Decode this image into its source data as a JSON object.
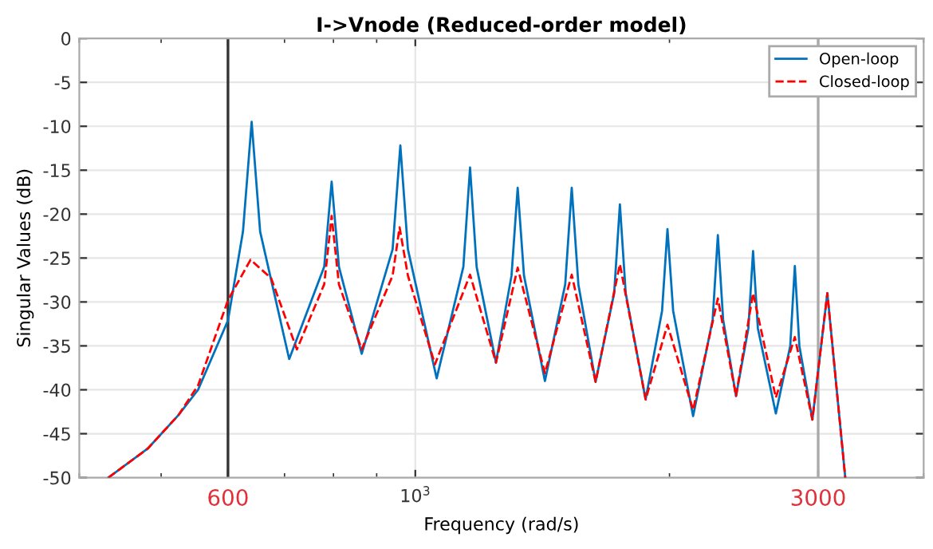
{
  "chart_data": {
    "type": "line",
    "title": "I->Vnode (Reduced-order model)",
    "xlabel": "Frequency (rad/s)",
    "ylabel": "Singular Values (dB)",
    "log": "x",
    "xlim": [
      400,
      4000
    ],
    "xticks": [
      600,
      {
        "value": 1000,
        "label": "10$^{3}$"
      },
      3000
    ],
    "ylim": [
      -50,
      0
    ],
    "yticks": [
      -50,
      -45,
      -40,
      -35,
      -30,
      -25,
      -20,
      -15,
      -10,
      -5,
      0
    ],
    "grid": true,
    "legend": "top right",
    "ref_lines": [
      {
        "axis": "x",
        "value": 600,
        "color": "#333333"
      },
      {
        "axis": "x",
        "value": 3000,
        "color": "#aaaaaa"
      }
    ],
    "series": [
      {
        "name": "Open-loop",
        "color": "#0072bd",
        "line_style": "solid",
        "x": [
          433,
          482,
          524,
          553,
          600,
          625,
          640,
          655,
          709,
          780,
          796,
          812,
          864,
          940,
          960,
          980,
          1060,
          1140,
          1161,
          1182,
          1246,
          1300,
          1322,
          1345,
          1424,
          1505,
          1532,
          1560,
          1635,
          1720,
          1747,
          1775,
          1874,
          1960,
          1989,
          2020,
          2133,
          2250,
          2282,
          2315,
          2398,
          2480,
          2512,
          2545,
          2673,
          2780,
          2815,
          2850,
          2953,
          3076,
          3230
        ],
        "values": [
          -50,
          -46.7,
          -42.9,
          -40,
          -32.1,
          -22,
          -9.5,
          -22,
          -36.5,
          -26,
          -16.3,
          -26,
          -35.9,
          -24,
          -12.2,
          -24,
          -38.7,
          -26,
          -14.7,
          -26,
          -36.9,
          -27,
          -17.0,
          -27,
          -39.0,
          -28,
          -17.0,
          -28,
          -39.1,
          -29,
          -18.9,
          -29,
          -41.1,
          -31,
          -21.7,
          -31,
          -43.0,
          -32,
          -22.4,
          -32,
          -40.7,
          -33,
          -24.2,
          -33,
          -42.7,
          -35,
          -25.9,
          -35,
          -43.4,
          -29.0,
          -50
        ]
      },
      {
        "name": "Closed-loop",
        "color": "#ff0000",
        "line_style": "dashed",
        "x": [
          433,
          482,
          524,
          553,
          600,
          638,
          675,
          724,
          780,
          796,
          812,
          864,
          940,
          958,
          980,
          1055,
          1161,
          1246,
          1322,
          1424,
          1532,
          1635,
          1747,
          1874,
          1989,
          2133,
          2282,
          2398,
          2512,
          2673,
          2815,
          2953,
          3076,
          3230
        ],
        "values": [
          -50,
          -46.7,
          -42.9,
          -39.5,
          -29.8,
          -25.2,
          -27.3,
          -35.4,
          -28,
          -20.2,
          -28,
          -35.4,
          -27,
          -21.5,
          -27,
          -37.1,
          -26.9,
          -36.9,
          -26.1,
          -38.1,
          -26.9,
          -39.1,
          -25.7,
          -41.1,
          -32.6,
          -42.3,
          -29.6,
          -40.7,
          -29.0,
          -40.9,
          -34.0,
          -43.4,
          -29.0,
          -50
        ]
      }
    ]
  }
}
